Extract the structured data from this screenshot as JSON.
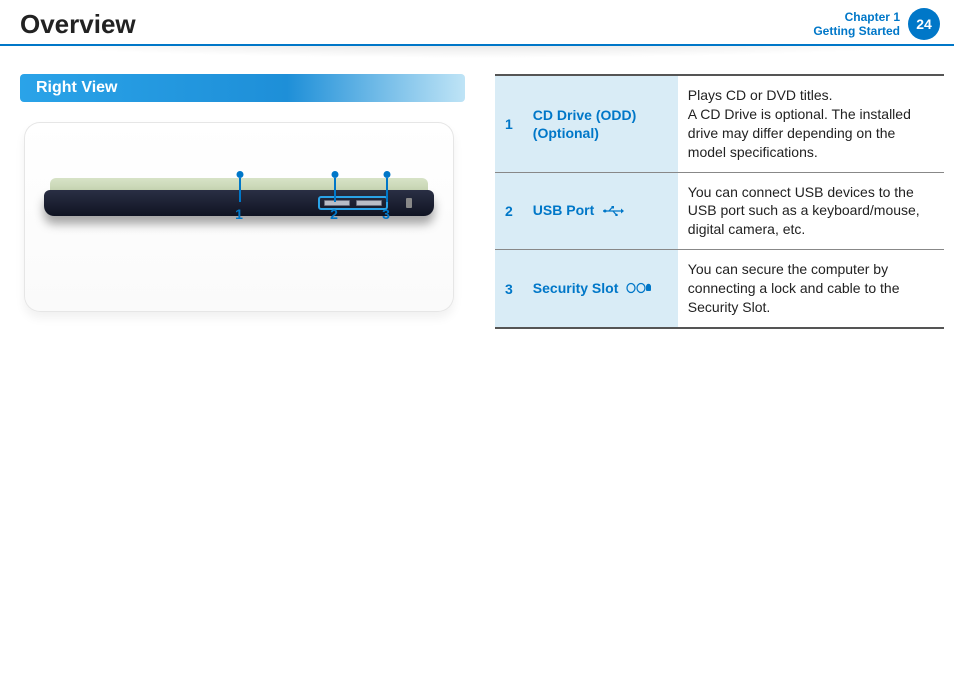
{
  "header": {
    "title": "Overview",
    "chapter_label": "Chapter 1",
    "chapter_sub": "Getting Started",
    "page_number": "24"
  },
  "section": {
    "title": "Right View",
    "accent_color": "#2aa3e8"
  },
  "diagram": {
    "callouts": [
      "1",
      "2",
      "3"
    ]
  },
  "table": {
    "rows": [
      {
        "num": "1",
        "name": "CD Drive (ODD) (Optional)",
        "icon": null,
        "desc": "Plays CD or DVD titles.\nA CD Drive is optional. The installed drive may differ depending on the model specifications."
      },
      {
        "num": "2",
        "name": "USB Port",
        "icon": "usb-icon",
        "desc": "You can connect USB devices to the USB port such as a keyboard/mouse, digital camera, etc."
      },
      {
        "num": "3",
        "name": "Security Slot",
        "icon": "lock-icon",
        "desc": "You can secure the computer by connecting a lock and cable to the Security Slot."
      }
    ]
  },
  "colors": {
    "brand_blue": "#0077c8",
    "panel_blue": "#d9ecf6"
  }
}
